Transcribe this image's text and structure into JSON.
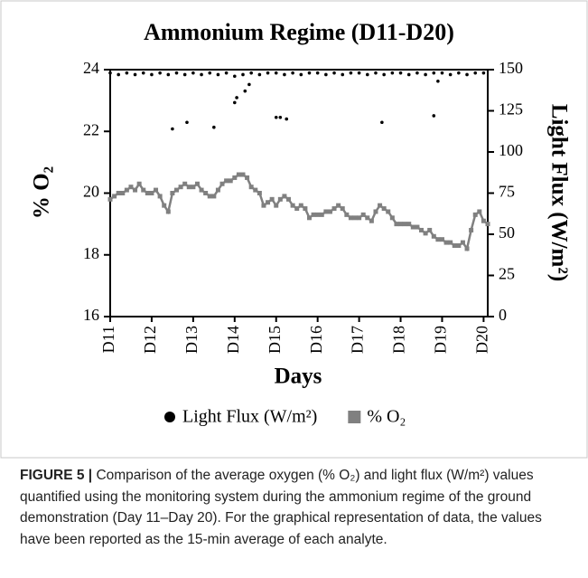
{
  "chart_data": {
    "type": "scatter-line",
    "title": "Ammonium Regime (D11-D20)",
    "x_label": "Days",
    "y_label": "% O₂",
    "y2_label": "Light Flux (W/m²)",
    "xlim": [
      11,
      20.1
    ],
    "xticks": [
      {
        "value": 11,
        "label": "D11"
      },
      {
        "value": 12,
        "label": "D12"
      },
      {
        "value": 13,
        "label": "D13"
      },
      {
        "value": 14,
        "label": "D14"
      },
      {
        "value": 15,
        "label": "D15"
      },
      {
        "value": 16,
        "label": "D16"
      },
      {
        "value": 17,
        "label": "D17"
      },
      {
        "value": 18,
        "label": "D18"
      },
      {
        "value": 19,
        "label": "D19"
      },
      {
        "value": 20,
        "label": "D20"
      }
    ],
    "ylim": [
      16,
      24
    ],
    "yticks": [
      16,
      18,
      20,
      22,
      24
    ],
    "y2lim": [
      0,
      150
    ],
    "y2ticks": [
      0,
      25,
      50,
      75,
      100,
      125,
      150
    ],
    "legend": "bottom",
    "series": [
      {
        "name": "Light Flux (W/m²)",
        "color": "#000000",
        "axis": "y2",
        "marker": "circle",
        "x": [
          11.0,
          11.2,
          11.4,
          11.6,
          11.8,
          12.0,
          12.2,
          12.4,
          12.6,
          12.8,
          13.0,
          13.2,
          13.4,
          13.6,
          13.8,
          14.0,
          14.2,
          14.4,
          14.6,
          14.8,
          15.0,
          15.2,
          15.4,
          15.6,
          15.8,
          16.0,
          16.2,
          16.4,
          16.6,
          16.8,
          17.0,
          17.2,
          17.4,
          17.6,
          17.8,
          18.0,
          18.2,
          18.4,
          18.6,
          18.8,
          19.0,
          19.2,
          19.4,
          19.6,
          19.8,
          20.0,
          12.5,
          12.85,
          13.5,
          14.0,
          14.05,
          14.25,
          14.35,
          15.0,
          15.1,
          15.25,
          17.55,
          18.8,
          18.9
        ],
        "values": [
          148,
          147,
          148,
          147,
          148,
          147,
          148,
          147,
          148,
          147,
          148,
          147,
          148,
          147,
          148,
          146,
          147,
          148,
          147,
          148,
          148,
          147,
          148,
          147,
          148,
          148,
          147,
          148,
          147,
          148,
          148,
          147,
          148,
          147,
          148,
          148,
          147,
          148,
          147,
          148,
          148,
          147,
          148,
          147,
          148,
          148,
          114,
          118,
          115,
          130,
          133,
          137,
          141,
          121,
          121,
          120,
          118,
          122,
          143
        ]
      },
      {
        "name": "% O₂",
        "color": "#808080",
        "axis": "y",
        "marker": "square",
        "x": [
          11.0,
          11.1,
          11.2,
          11.3,
          11.4,
          11.5,
          11.6,
          11.7,
          11.8,
          11.9,
          12.0,
          12.1,
          12.2,
          12.3,
          12.4,
          12.5,
          12.6,
          12.7,
          12.8,
          12.9,
          13.0,
          13.1,
          13.2,
          13.3,
          13.4,
          13.5,
          13.6,
          13.7,
          13.8,
          13.9,
          14.0,
          14.1,
          14.2,
          14.3,
          14.4,
          14.5,
          14.6,
          14.7,
          14.8,
          14.9,
          15.0,
          15.1,
          15.2,
          15.3,
          15.4,
          15.5,
          15.6,
          15.7,
          15.8,
          15.9,
          16.0,
          16.1,
          16.2,
          16.3,
          16.4,
          16.5,
          16.6,
          16.7,
          16.8,
          16.9,
          17.0,
          17.1,
          17.2,
          17.3,
          17.4,
          17.5,
          17.6,
          17.7,
          17.8,
          17.9,
          18.0,
          18.1,
          18.2,
          18.3,
          18.4,
          18.5,
          18.6,
          18.7,
          18.8,
          18.9,
          19.0,
          19.1,
          19.2,
          19.3,
          19.4,
          19.5,
          19.6,
          19.7,
          19.8,
          19.9,
          20.0,
          20.1
        ],
        "values": [
          19.8,
          19.9,
          20.0,
          20.0,
          20.1,
          20.2,
          20.1,
          20.3,
          20.1,
          20.0,
          20.0,
          20.1,
          19.9,
          19.6,
          19.4,
          20.0,
          20.1,
          20.2,
          20.3,
          20.2,
          20.2,
          20.3,
          20.1,
          20.0,
          19.9,
          19.9,
          20.1,
          20.3,
          20.4,
          20.4,
          20.5,
          20.6,
          20.6,
          20.5,
          20.2,
          20.1,
          20.0,
          19.6,
          19.7,
          19.8,
          19.6,
          19.8,
          19.9,
          19.8,
          19.6,
          19.5,
          19.6,
          19.5,
          19.2,
          19.3,
          19.3,
          19.3,
          19.4,
          19.4,
          19.5,
          19.6,
          19.5,
          19.3,
          19.2,
          19.2,
          19.2,
          19.3,
          19.2,
          19.1,
          19.4,
          19.6,
          19.5,
          19.4,
          19.2,
          19.0,
          19.0,
          19.0,
          19.0,
          18.9,
          18.9,
          18.8,
          18.7,
          18.8,
          18.6,
          18.5,
          18.5,
          18.4,
          18.4,
          18.3,
          18.3,
          18.4,
          18.2,
          18.8,
          19.3,
          19.4,
          19.1,
          19.0
        ]
      }
    ]
  },
  "caption": {
    "label": "FIGURE 5 |",
    "text": "Comparison of the average oxygen (% O₂) and light flux (W/m²) values quantified using the monitoring system during the ammonium regime of the ground demonstration (Day 11–Day 20). For the graphical representation of data, the values have been reported as the 15-min average of each analyte."
  }
}
